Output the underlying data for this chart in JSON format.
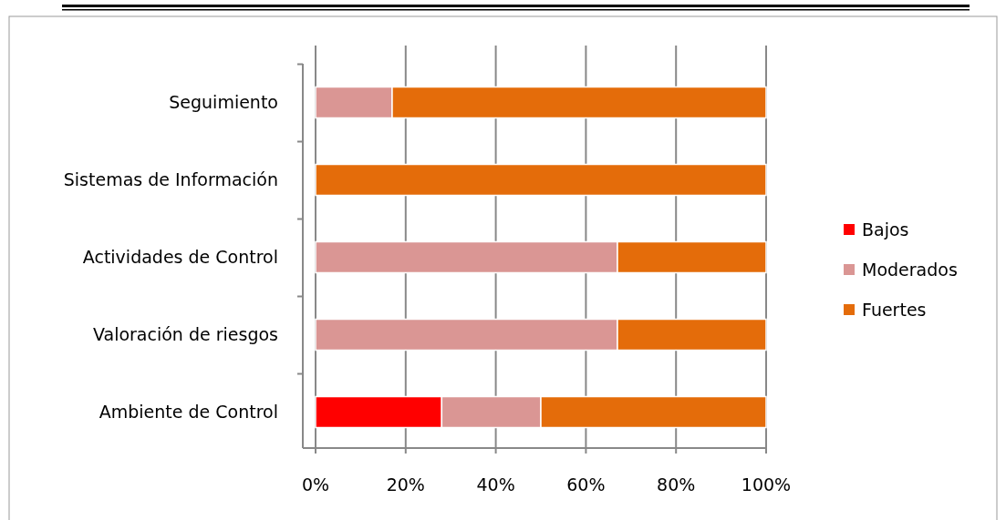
{
  "chart_data": {
    "type": "bar",
    "orientation": "horizontal",
    "stacked": true,
    "categories": [
      "Seguimiento",
      "Sistemas de Información",
      "Actividades de Control",
      "Valoración de riesgos",
      "Ambiente de Control"
    ],
    "series": [
      {
        "name": "Bajos",
        "color": "#ff0000",
        "values": [
          0,
          0,
          0,
          0,
          28
        ]
      },
      {
        "name": "Moderados",
        "color": "#da9694",
        "values": [
          17,
          0,
          67,
          67,
          22
        ]
      },
      {
        "name": "Fuertes",
        "color": "#e46c0a",
        "values": [
          83,
          100,
          33,
          33,
          50
        ]
      }
    ],
    "xlim": [
      0,
      100
    ],
    "xticks": [
      {
        "value": 0,
        "label": "0%"
      },
      {
        "value": 20,
        "label": "20%"
      },
      {
        "value": 40,
        "label": "40%"
      },
      {
        "value": 60,
        "label": "60%"
      },
      {
        "value": 80,
        "label": "80%"
      },
      {
        "value": 100,
        "label": "100%"
      }
    ],
    "grid": "x",
    "legend": "right"
  }
}
